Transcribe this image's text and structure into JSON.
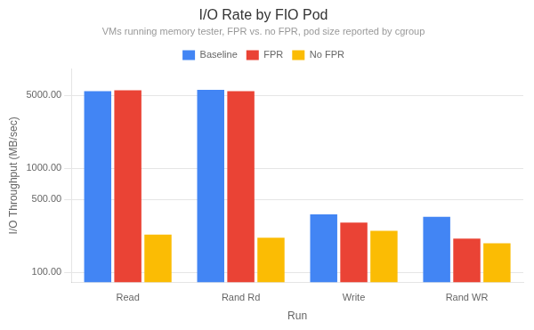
{
  "chart_data": {
    "type": "bar",
    "title": "I/O Rate by FIO Pod",
    "subtitle": "VMs running memory tester, FPR vs. no FPR, pod size reported by cgroup",
    "xlabel": "Run",
    "ylabel": "I/O Throughput (MB/sec)",
    "categories": [
      "Read",
      "Rand Rd",
      "Write",
      "Rand WR"
    ],
    "series": [
      {
        "name": "Baseline",
        "color": "#4285F4",
        "values": [
          5500,
          5650,
          360,
          340
        ]
      },
      {
        "name": "FPR",
        "color": "#EA4335",
        "values": [
          5600,
          5500,
          300,
          210
        ]
      },
      {
        "name": "No FPR",
        "color": "#FBBC04",
        "values": [
          230,
          215,
          250,
          190
        ]
      }
    ],
    "log": "y",
    "ylim": [
      80,
      9000
    ],
    "yticks": [
      {
        "value": 100,
        "label": "100.00"
      },
      {
        "value": 500,
        "label": "500.00"
      },
      {
        "value": 1000,
        "label": "1000.00"
      },
      {
        "value": 5000,
        "label": "5000.00"
      }
    ],
    "grid": true,
    "legend": "top"
  }
}
